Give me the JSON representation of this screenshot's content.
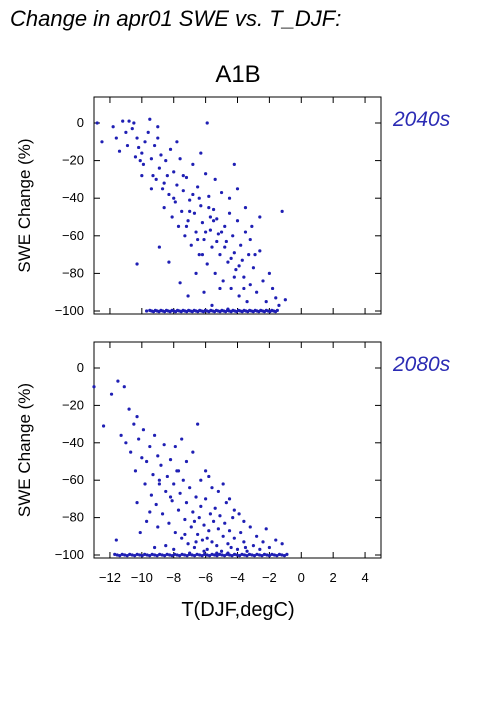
{
  "title": "Change in apr01 SWE vs. T_DJF:",
  "chart_data": {
    "type": "scatter",
    "scenario": "A1B",
    "xlabel": "T(DJF,degC)",
    "ylabel": "SWE Change (%)",
    "xlim": [
      -13,
      5
    ],
    "ylim": [
      -101,
      14
    ],
    "xticks": [
      -12,
      -10,
      -8,
      -6,
      -4,
      -2,
      0,
      2,
      4
    ],
    "yticks": [
      0,
      -20,
      -40,
      -60,
      -80,
      -100
    ],
    "point_color": "#1f1fb4",
    "label_color": "#2b2bb4",
    "panels": [
      {
        "period": "2040s",
        "points": [
          [
            -12.8,
            0
          ],
          [
            -12.5,
            -10
          ],
          [
            -11.8,
            -2
          ],
          [
            -11.6,
            -8
          ],
          [
            -11.4,
            -15
          ],
          [
            -11.2,
            1
          ],
          [
            -11.0,
            -5
          ],
          [
            -10.9,
            -12
          ],
          [
            -10.8,
            1
          ],
          [
            -10.6,
            -3
          ],
          [
            -10.5,
            0
          ],
          [
            -10.4,
            -18
          ],
          [
            -10.3,
            -8
          ],
          [
            -10.2,
            -13
          ],
          [
            -10.1,
            -20
          ],
          [
            -10.0,
            -16
          ],
          [
            -9.9,
            -22
          ],
          [
            -9.8,
            -10
          ],
          [
            -9.6,
            -5
          ],
          [
            -9.5,
            2
          ],
          [
            -9.4,
            -19
          ],
          [
            -9.3,
            -28
          ],
          [
            -9.2,
            -12
          ],
          [
            -9.1,
            -30
          ],
          [
            -9.0,
            -8
          ],
          [
            -8.9,
            -24
          ],
          [
            -8.8,
            -17
          ],
          [
            -8.7,
            -35
          ],
          [
            -8.6,
            -45
          ],
          [
            -8.5,
            -20
          ],
          [
            -8.4,
            -28
          ],
          [
            -8.3,
            -38
          ],
          [
            -8.2,
            -14
          ],
          [
            -8.1,
            -50
          ],
          [
            -8.0,
            -26
          ],
          [
            -7.9,
            -42
          ],
          [
            -7.8,
            -33
          ],
          [
            -7.7,
            -55
          ],
          [
            -7.6,
            -19
          ],
          [
            -7.5,
            -47
          ],
          [
            -7.4,
            -36
          ],
          [
            -7.3,
            -60
          ],
          [
            -7.2,
            -29
          ],
          [
            -7.1,
            -52
          ],
          [
            -7.0,
            -41
          ],
          [
            -6.9,
            -65
          ],
          [
            -6.8,
            -22
          ],
          [
            -6.7,
            -48
          ],
          [
            -6.6,
            -58
          ],
          [
            -6.5,
            -34
          ],
          [
            -6.4,
            -70
          ],
          [
            -6.3,
            -44
          ],
          [
            -6.2,
            -53
          ],
          [
            -6.1,
            -62
          ],
          [
            -6.0,
            -27
          ],
          [
            -5.9,
            -75
          ],
          [
            -5.8,
            -39
          ],
          [
            -5.7,
            -57
          ],
          [
            -5.6,
            -66
          ],
          [
            -5.5,
            -46
          ],
          [
            -5.4,
            -80
          ],
          [
            -5.3,
            -51
          ],
          [
            -5.2,
            -59
          ],
          [
            -5.1,
            -70
          ],
          [
            -5.0,
            -37
          ],
          [
            -4.9,
            -84
          ],
          [
            -4.8,
            -55
          ],
          [
            -4.7,
            -63
          ],
          [
            -4.6,
            -74
          ],
          [
            -4.5,
            -48
          ],
          [
            -4.4,
            -88
          ],
          [
            -4.3,
            -60
          ],
          [
            -4.2,
            -69
          ],
          [
            -4.1,
            -78
          ],
          [
            -4.0,
            -52
          ],
          [
            -3.9,
            -92
          ],
          [
            -3.8,
            -65
          ],
          [
            -3.7,
            -73
          ],
          [
            -3.6,
            -82
          ],
          [
            -3.5,
            -58
          ],
          [
            -3.4,
            -95
          ],
          [
            -3.3,
            -70
          ],
          [
            -3.2,
            -86
          ],
          [
            -3.0,
            -77
          ],
          [
            -2.8,
            -90
          ],
          [
            -2.6,
            -68
          ],
          [
            -2.4,
            -84
          ],
          [
            -2.2,
            -95
          ],
          [
            -2.0,
            -80
          ],
          [
            -1.8,
            -88
          ],
          [
            -1.6,
            -93
          ],
          [
            -1.4,
            -97
          ],
          [
            -1.2,
            -47
          ],
          [
            -1.0,
            -94
          ],
          [
            -10.3,
            -75
          ],
          [
            -9.7,
            -100
          ],
          [
            -8.9,
            -66
          ],
          [
            -8.3,
            -74
          ],
          [
            -7.6,
            -85
          ],
          [
            -7.1,
            -92
          ],
          [
            -6.6,
            -80
          ],
          [
            -6.1,
            -90
          ],
          [
            -5.6,
            -97
          ],
          [
            -5.1,
            -88
          ],
          [
            -4.6,
            -99
          ],
          [
            -6.4,
            -40
          ],
          [
            -5.8,
            -45
          ],
          [
            -6.0,
            -58
          ],
          [
            -5.5,
            -52
          ],
          [
            -7.0,
            -47
          ],
          [
            -6.8,
            -38
          ],
          [
            -7.2,
            -55
          ],
          [
            -5.3,
            -63
          ],
          [
            -5.7,
            -50
          ],
          [
            -6.5,
            -62
          ],
          [
            -6.2,
            -70
          ],
          [
            -4.8,
            -66
          ],
          [
            -4.4,
            -72
          ],
          [
            -5.0,
            -58
          ],
          [
            -3.9,
            -76
          ],
          [
            -4.2,
            -82
          ],
          [
            -3.6,
            -88
          ],
          [
            -3.2,
            -62
          ],
          [
            -2.9,
            -70
          ],
          [
            -8.6,
            -32
          ],
          [
            -8.0,
            -40
          ],
          [
            -7.4,
            -28
          ],
          [
            -9.4,
            -35
          ],
          [
            -10.0,
            -28
          ],
          [
            -6.3,
            -16
          ],
          [
            -5.4,
            -30
          ],
          [
            -4.5,
            -40
          ],
          [
            -4.0,
            -35
          ],
          [
            -3.5,
            -45
          ],
          [
            -2.6,
            -50
          ],
          [
            -3.1,
            -55
          ],
          [
            -5.9,
            0
          ],
          [
            -7.8,
            -10
          ],
          [
            -4.2,
            -22
          ],
          [
            -9.0,
            -2
          ]
        ],
        "floor_range": [
          -9.5,
          -1.5
        ],
        "floor_y": -100
      },
      {
        "period": "2080s",
        "points": [
          [
            -13.0,
            -10
          ],
          [
            -12.4,
            -31
          ],
          [
            -11.9,
            -14
          ],
          [
            -11.5,
            -7
          ],
          [
            -11.3,
            -36
          ],
          [
            -11.1,
            -10
          ],
          [
            -11.0,
            -40
          ],
          [
            -10.8,
            -22
          ],
          [
            -10.7,
            -45
          ],
          [
            -10.5,
            -30
          ],
          [
            -10.4,
            -55
          ],
          [
            -10.3,
            -26
          ],
          [
            -10.2,
            -38
          ],
          [
            -10.0,
            -48
          ],
          [
            -9.9,
            -33
          ],
          [
            -9.8,
            -62
          ],
          [
            -9.7,
            -50
          ],
          [
            -9.5,
            -42
          ],
          [
            -9.4,
            -68
          ],
          [
            -9.3,
            -57
          ],
          [
            -9.2,
            -36
          ],
          [
            -9.1,
            -73
          ],
          [
            -9.0,
            -47
          ],
          [
            -8.9,
            -60
          ],
          [
            -8.8,
            -52
          ],
          [
            -8.7,
            -78
          ],
          [
            -8.6,
            -41
          ],
          [
            -8.5,
            -66
          ],
          [
            -8.4,
            -58
          ],
          [
            -8.3,
            -83
          ],
          [
            -8.2,
            -49
          ],
          [
            -8.1,
            -71
          ],
          [
            -8.0,
            -62
          ],
          [
            -7.9,
            -88
          ],
          [
            -7.8,
            -55
          ],
          [
            -7.7,
            -76
          ],
          [
            -7.6,
            -67
          ],
          [
            -7.5,
            -91
          ],
          [
            -7.4,
            -60
          ],
          [
            -7.3,
            -81
          ],
          [
            -7.2,
            -72
          ],
          [
            -7.1,
            -94
          ],
          [
            -7.0,
            -64
          ],
          [
            -6.9,
            -85
          ],
          [
            -6.8,
            -77
          ],
          [
            -6.7,
            -96
          ],
          [
            -6.6,
            -69
          ],
          [
            -6.5,
            -89
          ],
          [
            -6.4,
            -80
          ],
          [
            -6.3,
            -74
          ],
          [
            -6.2,
            -92
          ],
          [
            -6.1,
            -84
          ],
          [
            -6.0,
            -70
          ],
          [
            -5.9,
            -97
          ],
          [
            -5.8,
            -87
          ],
          [
            -5.7,
            -78
          ],
          [
            -5.6,
            -93
          ],
          [
            -5.5,
            -82
          ],
          [
            -5.4,
            -75
          ],
          [
            -5.3,
            -95
          ],
          [
            -5.2,
            -86
          ],
          [
            -5.1,
            -79
          ],
          [
            -5.0,
            -98
          ],
          [
            -4.9,
            -90
          ],
          [
            -4.8,
            -83
          ],
          [
            -4.7,
            -72
          ],
          [
            -4.6,
            -94
          ],
          [
            -4.5,
            -87
          ],
          [
            -4.4,
            -96
          ],
          [
            -4.3,
            -80
          ],
          [
            -4.2,
            -91
          ],
          [
            -4.0,
            -97
          ],
          [
            -3.8,
            -88
          ],
          [
            -3.6,
            -93
          ],
          [
            -3.4,
            -98
          ],
          [
            -3.2,
            -85
          ],
          [
            -3.0,
            -95
          ],
          [
            -2.8,
            -90
          ],
          [
            -2.6,
            -97
          ],
          [
            -2.4,
            -93
          ],
          [
            -2.0,
            -96
          ],
          [
            -1.6,
            -92
          ],
          [
            -1.2,
            -94
          ],
          [
            -7.5,
            -38
          ],
          [
            -6.8,
            -45
          ],
          [
            -7.2,
            -50
          ],
          [
            -6.3,
            -60
          ],
          [
            -5.6,
            -64
          ],
          [
            -4.5,
            -70
          ],
          [
            -4.2,
            -76
          ],
          [
            -6.0,
            -55
          ],
          [
            -5.2,
            -66
          ],
          [
            -8.9,
            -62
          ],
          [
            -9.5,
            -77
          ],
          [
            -9.0,
            -85
          ],
          [
            -8.5,
            -95
          ],
          [
            -11.6,
            -92
          ],
          [
            -10.1,
            -88
          ],
          [
            -10.3,
            -72
          ],
          [
            -9.7,
            -82
          ],
          [
            -6.5,
            -30
          ],
          [
            -7.9,
            -42
          ],
          [
            -5.8,
            -58
          ],
          [
            -8.2,
            -69
          ],
          [
            -6.7,
            -82
          ],
          [
            -7.7,
            -55
          ],
          [
            -4.9,
            -62
          ],
          [
            -3.9,
            -78
          ],
          [
            -2.2,
            -86
          ],
          [
            -3.6,
            -82
          ],
          [
            -6.1,
            -98
          ],
          [
            -5.3,
            -99
          ],
          [
            -4.6,
            -99
          ],
          [
            -3.5,
            -96
          ],
          [
            -7.0,
            -99
          ],
          [
            -8.0,
            -97
          ],
          [
            -9.2,
            -96
          ],
          [
            -7.3,
            -89
          ],
          [
            -6.6,
            -93
          ],
          [
            -5.9,
            -91
          ]
        ],
        "floor_range": [
          -11.7,
          -0.9
        ],
        "floor_y": -100
      }
    ]
  }
}
